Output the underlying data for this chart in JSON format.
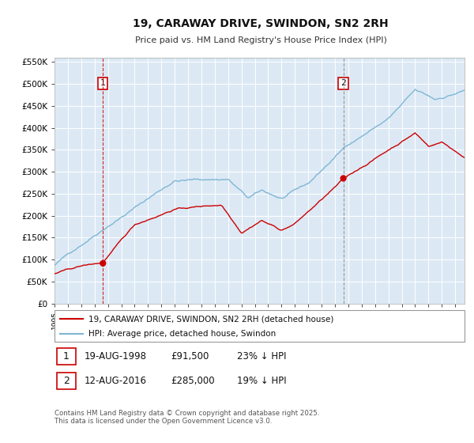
{
  "title": "19, CARAWAY DRIVE, SWINDON, SN2 2RH",
  "subtitle": "Price paid vs. HM Land Registry's House Price Index (HPI)",
  "legend_line1": "19, CARAWAY DRIVE, SWINDON, SN2 2RH (detached house)",
  "legend_line2": "HPI: Average price, detached house, Swindon",
  "footnote": "Contains HM Land Registry data © Crown copyright and database right 2025.\nThis data is licensed under the Open Government Licence v3.0.",
  "annotation1_date": "19-AUG-1998",
  "annotation1_price": "£91,500",
  "annotation1_hpi": "23% ↓ HPI",
  "annotation2_date": "12-AUG-2016",
  "annotation2_price": "£285,000",
  "annotation2_hpi": "19% ↓ HPI",
  "red_color": "#cc0000",
  "blue_color": "#7eb6d4",
  "bg_color": "#dce9f5",
  "grid_color": "#ffffff",
  "vline1_color": "#cc0000",
  "vline2_color": "#888888",
  "ylim": [
    0,
    560000
  ],
  "yticks": [
    0,
    50000,
    100000,
    150000,
    200000,
    250000,
    300000,
    350000,
    400000,
    450000,
    500000,
    550000
  ],
  "xlim_start": 1995.3,
  "xlim_end": 2025.7
}
